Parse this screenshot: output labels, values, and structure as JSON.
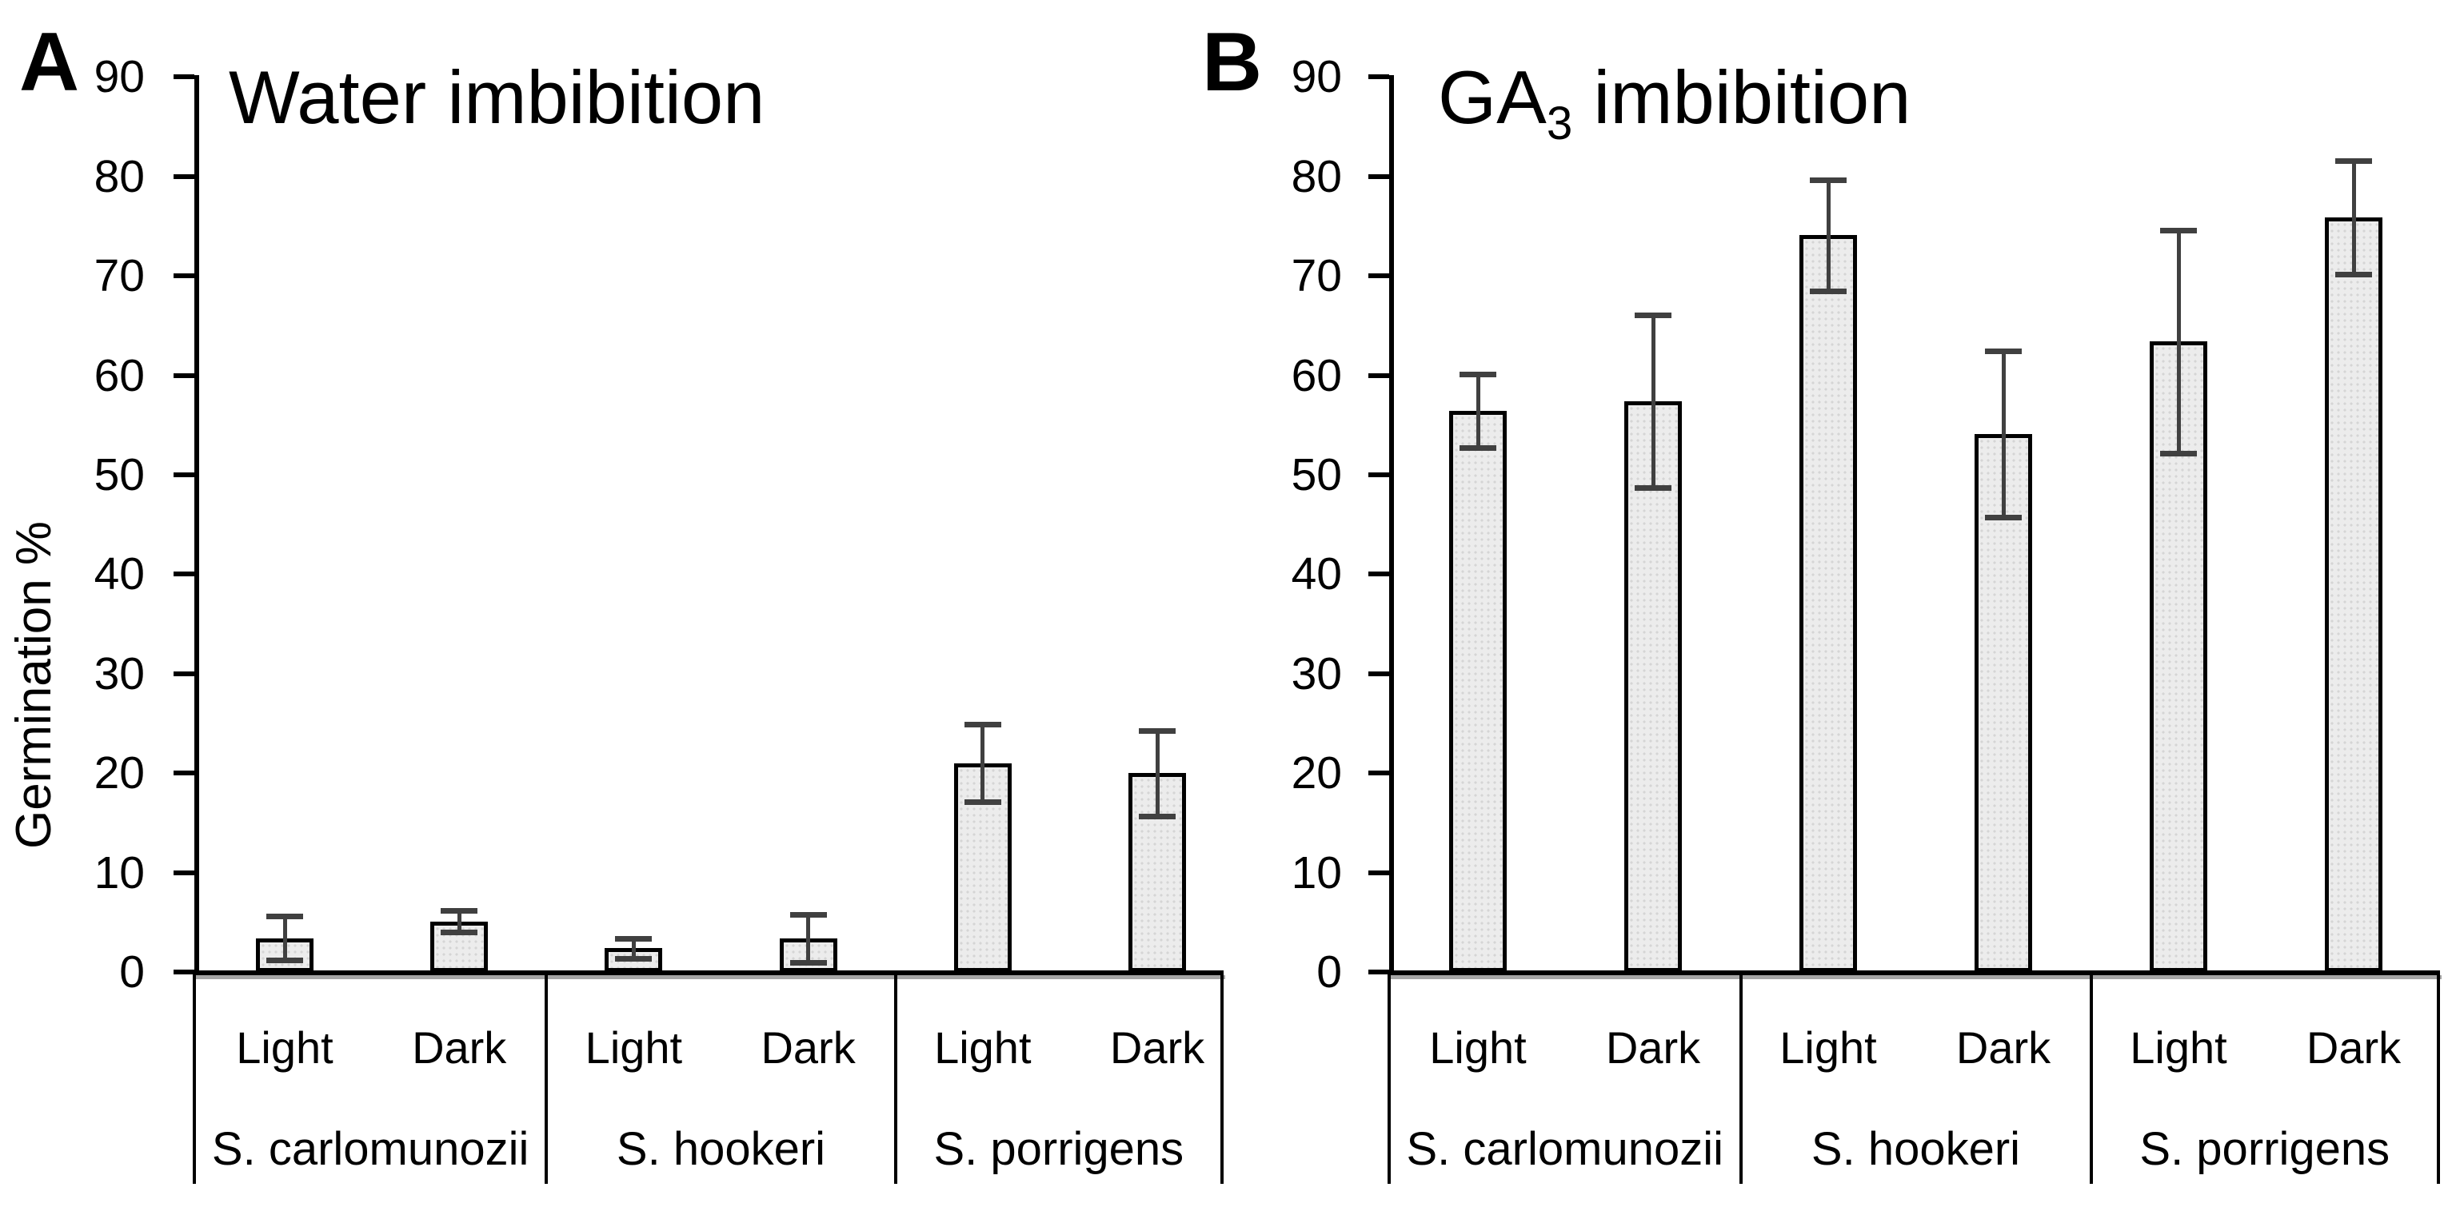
{
  "figure": {
    "y_axis_label": "Germination %",
    "tick_values": [
      90,
      80,
      70,
      60,
      50,
      40,
      30,
      20,
      10,
      0
    ],
    "condition_labels": [
      "Light",
      "Dark"
    ],
    "species_labels": [
      "S. carlomunozii",
      "S. hookeri",
      "S. porrigens"
    ],
    "colors": {
      "bar_fill": "#ececec",
      "bar_dot_texture": "#d5d5d5",
      "bar_border": "#000000",
      "error_bar": "#404040",
      "axis": "#000000",
      "axis_shadow": "#a6a6a6",
      "text": "#000000",
      "background": "#ffffff"
    }
  },
  "chart_data": [
    {
      "type": "bar",
      "panel_label": "A",
      "title": "Water imbibition",
      "title_base": "Water imbibition",
      "title_sub": "",
      "title_rest": "",
      "ylabel": "Germination %",
      "ylim": [
        0,
        90
      ],
      "ytick_step": 10,
      "grid": false,
      "legend": "none",
      "error_bars": true,
      "groups": [
        {
          "species": "S. carlomunozii",
          "bars": [
            {
              "condition": "Light",
              "value": 3.4,
              "error": 2.2
            },
            {
              "condition": "Dark",
              "value": 5.1,
              "error": 1.1
            }
          ]
        },
        {
          "species": "S. hookeri",
          "bars": [
            {
              "condition": "Light",
              "value": 2.4,
              "error": 1.0
            },
            {
              "condition": "Dark",
              "value": 3.4,
              "error": 2.4
            }
          ]
        },
        {
          "species": "S. porrigens",
          "bars": [
            {
              "condition": "Light",
              "value": 21.0,
              "error": 3.9
            },
            {
              "condition": "Dark",
              "value": 20.0,
              "error": 4.3
            }
          ]
        }
      ]
    },
    {
      "type": "bar",
      "panel_label": "B",
      "title": "GA3 imbibition",
      "title_base": "GA",
      "title_sub": "3",
      "title_rest": " imbibition",
      "ylabel": "",
      "ylim": [
        0,
        90
      ],
      "ytick_step": 10,
      "grid": false,
      "legend": "none",
      "error_bars": true,
      "groups": [
        {
          "species": "S. carlomunozii",
          "bars": [
            {
              "condition": "Light",
              "value": 56.4,
              "error": 3.7
            },
            {
              "condition": "Dark",
              "value": 57.4,
              "error": 8.7
            }
          ]
        },
        {
          "species": "S. hookeri",
          "bars": [
            {
              "condition": "Light",
              "value": 74.1,
              "error": 5.6
            },
            {
              "condition": "Dark",
              "value": 54.1,
              "error": 8.4
            }
          ]
        },
        {
          "species": "S. porrigens",
          "bars": [
            {
              "condition": "Light",
              "value": 63.4,
              "error": 11.2
            },
            {
              "condition": "Dark",
              "value": 75.9,
              "error": 5.7
            }
          ]
        }
      ]
    }
  ]
}
